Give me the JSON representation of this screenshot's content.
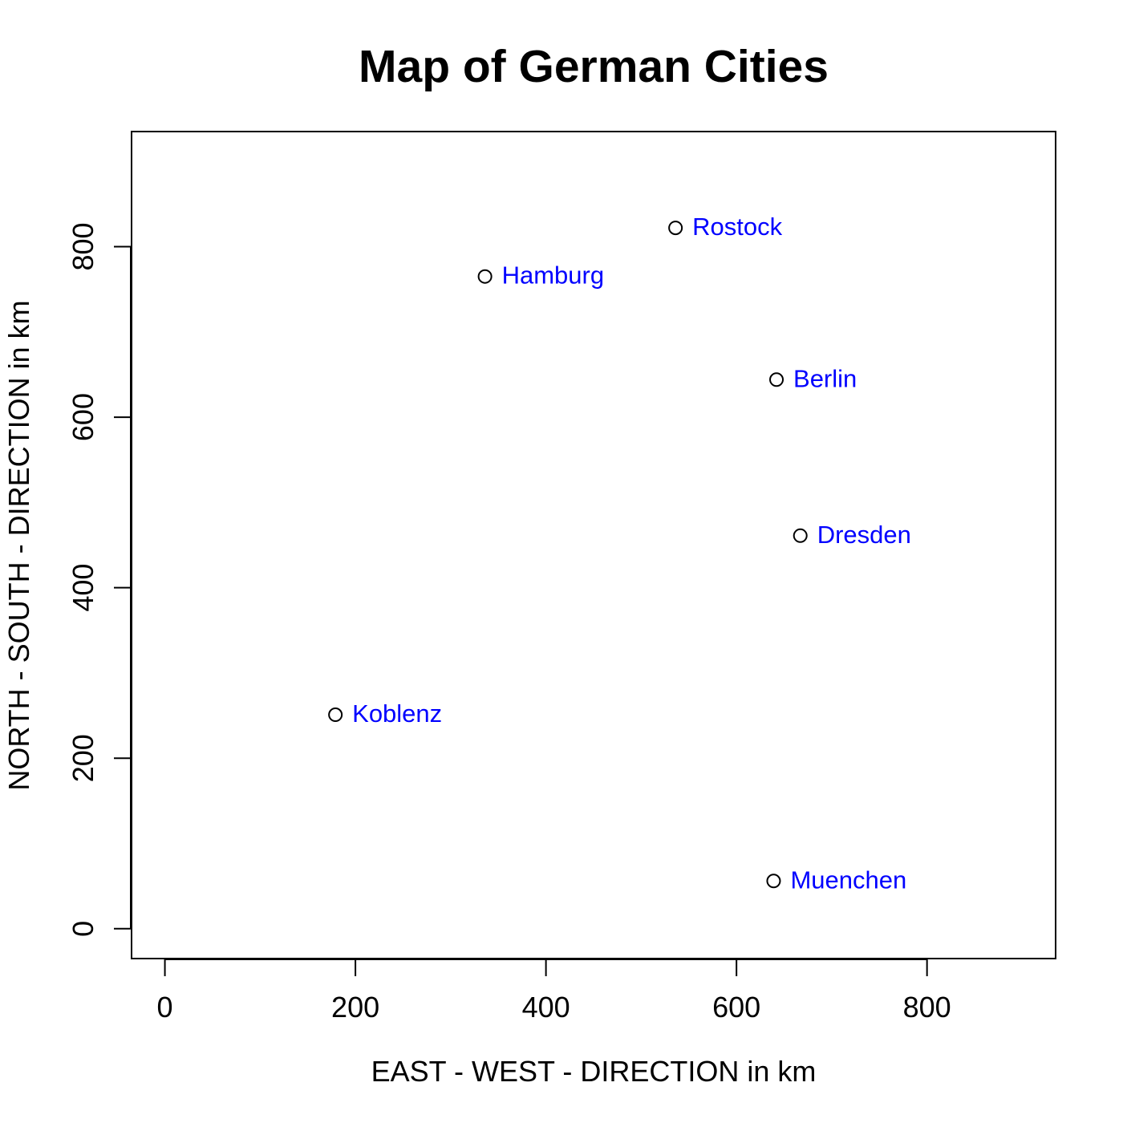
{
  "chart_data": {
    "type": "scatter",
    "title": "Map of German Cities",
    "xlabel": "EAST - WEST - DIRECTION in km",
    "ylabel": "NORTH - SOUTH - DIRECTION in km",
    "xlim": [
      -35,
      935
    ],
    "ylim": [
      -35,
      935
    ],
    "xticks": [
      0,
      200,
      400,
      600,
      800
    ],
    "yticks": [
      0,
      200,
      400,
      600,
      800
    ],
    "grid": false,
    "point_color": "#000000",
    "label_color": "#0000ff",
    "points": [
      {
        "label": "Rostock",
        "x": 536,
        "y": 822
      },
      {
        "label": "Hamburg",
        "x": 336,
        "y": 765
      },
      {
        "label": "Berlin",
        "x": 642,
        "y": 644
      },
      {
        "label": "Dresden",
        "x": 667,
        "y": 461
      },
      {
        "label": "Koblenz",
        "x": 179,
        "y": 251
      },
      {
        "label": "Muenchen",
        "x": 639,
        "y": 56
      }
    ]
  }
}
